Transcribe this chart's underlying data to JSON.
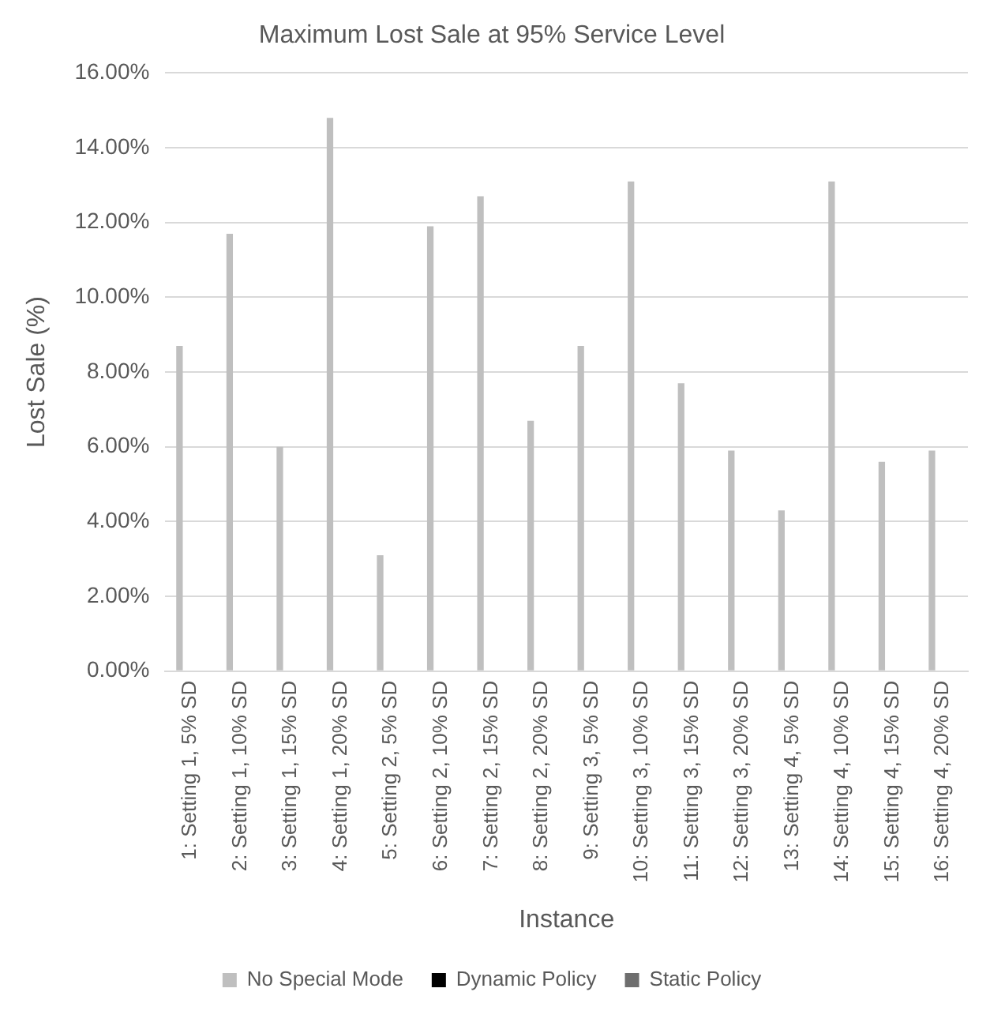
{
  "chart_data": {
    "type": "bar",
    "title": "Maximum Lost Sale at 95% Service Level",
    "xlabel": "Instance",
    "ylabel": "Lost Sale (%)",
    "categories": [
      "1: Setting 1, 5% SD",
      "2: Setting 1, 10% SD",
      "3: Setting 1, 15% SD",
      "4: Setting 1, 20% SD",
      "5: Setting 2, 5% SD",
      "6: Setting 2, 10% SD",
      "7: Setting 2, 15% SD",
      "8: Setting 2, 20% SD",
      "9: Setting 3, 5% SD",
      "10: Setting 3, 10% SD",
      "11: Setting 3, 15% SD",
      "12: Setting 3, 20% SD",
      "13: Setting 4, 5% SD",
      "14: Setting 4, 10% SD",
      "15: Setting 4, 15% SD",
      "16: Setting 4, 20% SD"
    ],
    "series": [
      {
        "name": "No Special Mode",
        "color": "#bfbfbf",
        "values": [
          8.7,
          11.7,
          6.0,
          14.8,
          3.1,
          11.9,
          12.7,
          6.7,
          8.7,
          13.1,
          7.7,
          5.9,
          4.3,
          13.1,
          5.6,
          5.9
        ]
      },
      {
        "name": "Dynamic Policy",
        "color": "#000000",
        "values": [
          null,
          null,
          null,
          null,
          null,
          null,
          null,
          null,
          null,
          null,
          null,
          null,
          null,
          null,
          null,
          null
        ]
      },
      {
        "name": "Static Policy",
        "color": "#6e6e6e",
        "values": [
          null,
          null,
          null,
          null,
          null,
          null,
          null,
          null,
          null,
          null,
          null,
          null,
          null,
          null,
          null,
          null
        ]
      }
    ],
    "ylim": [
      0,
      16
    ],
    "yticks": [
      {
        "value": 0,
        "label": "0.00%"
      },
      {
        "value": 2,
        "label": "2.00%"
      },
      {
        "value": 4,
        "label": "4.00%"
      },
      {
        "value": 6,
        "label": "6.00%"
      },
      {
        "value": 8,
        "label": "8.00%"
      },
      {
        "value": 10,
        "label": "10.00%"
      },
      {
        "value": 12,
        "label": "12.00%"
      },
      {
        "value": 14,
        "label": "14.00%"
      },
      {
        "value": 16,
        "label": "16.00%"
      }
    ],
    "grid": "y",
    "legend": "bottom"
  }
}
